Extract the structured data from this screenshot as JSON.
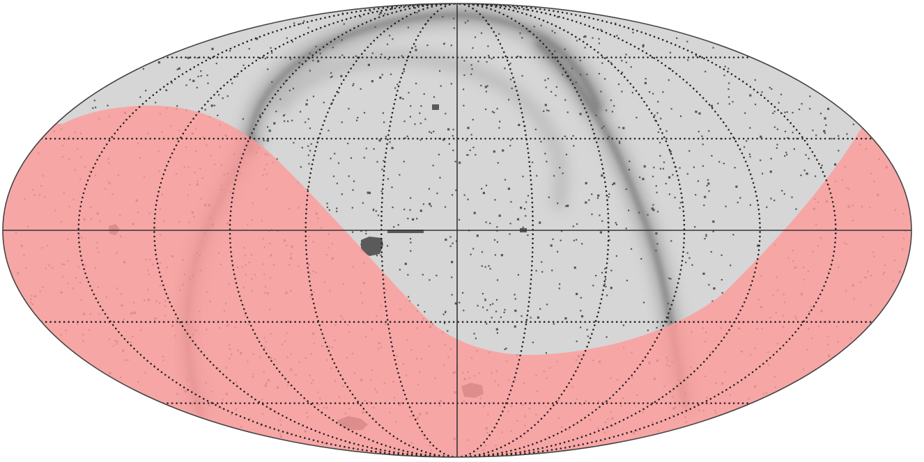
{
  "map": {
    "projection": "mollweide",
    "graticule": {
      "longitude_step_deg": 30,
      "latitude_lines_deg": [
        -60,
        -30,
        30,
        60
      ]
    },
    "colors": {
      "sky_background": "#d6d6d6",
      "excluded_region": "#ff9a9a",
      "point_sources": "#555555",
      "dust_structure": "#6a6a6a",
      "grid": "#222222",
      "outline": "#444444"
    },
    "excluded_region_opacity": 0.8,
    "point_source_count": 1500
  }
}
